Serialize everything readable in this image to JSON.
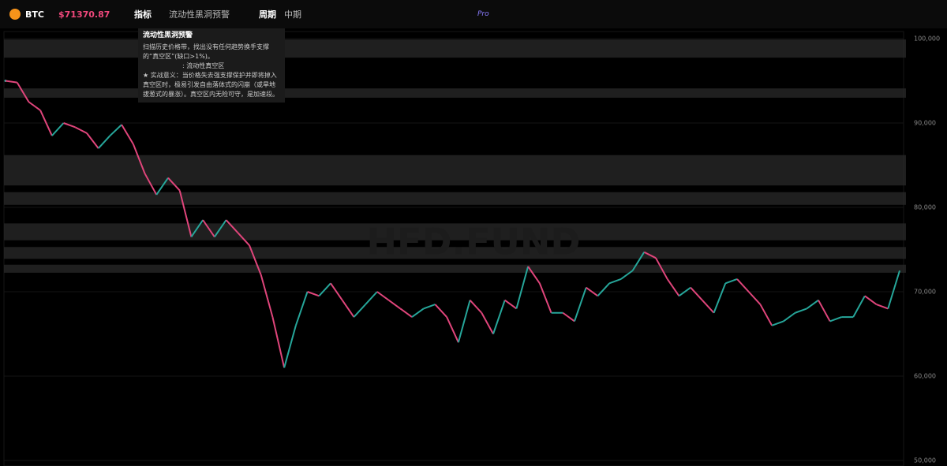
{
  "header": {
    "symbol": "BTC",
    "price": "$71370.87",
    "indicator_label": "指标",
    "indicator": "流动性黑洞预警",
    "period_label": "周期",
    "period": "中期",
    "pro": "Pro"
  },
  "tooltip": {
    "title": "流动性黑洞预警",
    "desc": "扫描历史价格带，找出没有任何趋势换手支撑的“真空区”(缺口>1%)。",
    "legend": ": 流动性真空区",
    "meaning": "★ 实战意义：当价格失去强支撑保护并即将掉入真空区时，极易引发自由落体式的闪崩（或旱地拔葱式的暴涨）。真空区内无险可守，是加速段。"
  },
  "watermark": "HFD.FUND",
  "chart_data": {
    "type": "line",
    "up_color": "#26a69a",
    "down_color": "#e0457b",
    "zone_color": "#2a2a2a",
    "values": [
      95000,
      94800,
      92500,
      91500,
      88500,
      90000,
      89500,
      88800,
      87000,
      88500,
      89800,
      87500,
      84000,
      81500,
      83500,
      82000,
      76500,
      78500,
      76500,
      78500,
      77000,
      75500,
      72000,
      67000,
      61000,
      66000,
      70000,
      69500,
      71000,
      69000,
      67000,
      68500,
      70000,
      69000,
      68000,
      67000,
      68000,
      68500,
      67000,
      64000,
      69000,
      67500,
      65000,
      69000,
      68000,
      73000,
      71000,
      67500,
      67500,
      66500,
      70500,
      69500,
      71000,
      71500,
      72500,
      74700,
      74000,
      71500,
      69500,
      70500,
      69000,
      67500,
      71000,
      71500,
      70000,
      68500,
      66000,
      66500,
      67500,
      68000,
      69000,
      66500,
      67000,
      67000,
      69500,
      68500,
      68000,
      72500
    ],
    "zones": [
      [
        97750,
        99900
      ],
      [
        93000,
        94100
      ],
      [
        82600,
        86200
      ],
      [
        80300,
        81800
      ],
      [
        76100,
        78100
      ],
      [
        73900,
        75300
      ],
      [
        72250,
        73200
      ]
    ],
    "ylim": [
      50000,
      100000
    ],
    "yticks": [
      {
        "value": 50000,
        "label": "50,000"
      },
      {
        "value": 60000,
        "label": "60,000"
      },
      {
        "value": 70000,
        "label": "70,000"
      },
      {
        "value": 80000,
        "label": "80,000"
      },
      {
        "value": 90000,
        "label": "90,000"
      },
      {
        "value": 100000,
        "label": "100,000"
      }
    ],
    "grid": true
  }
}
